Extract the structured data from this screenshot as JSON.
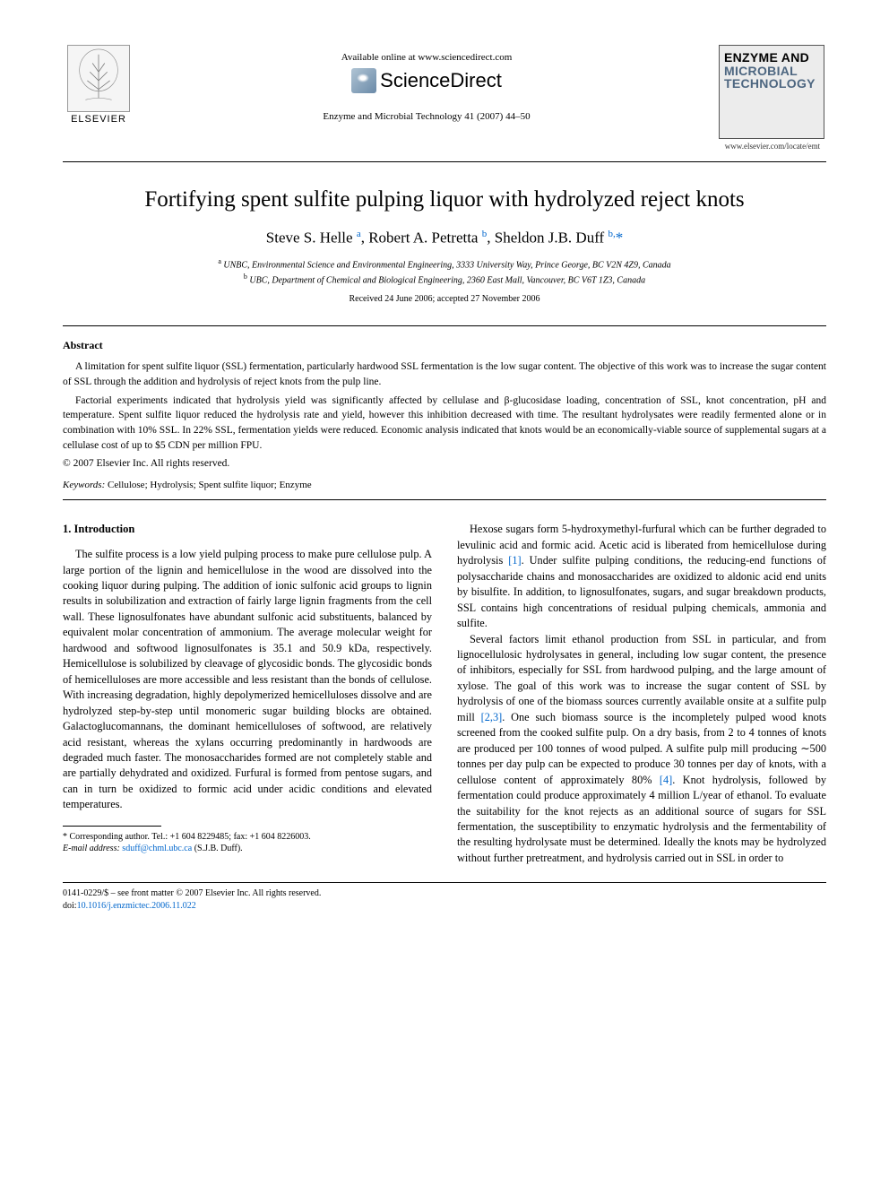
{
  "header": {
    "elsevier": "ELSEVIER",
    "available": "Available online at www.sciencedirect.com",
    "sciencedirect": "ScienceDirect",
    "journal_ref": "Enzyme and Microbial Technology 41 (2007) 44–50",
    "cover_line1": "ENZYME AND",
    "cover_line2": "MICROBIAL",
    "cover_line3": "TECHNOLOGY",
    "cover_url": "www.elsevier.com/locate/emt"
  },
  "title": "Fortifying spent sulfite pulping liquor with hydrolyzed reject knots",
  "authors_html": "Steve S. Helle <sup>a</sup>, Robert A. Petretta <sup>b</sup>, Sheldon J.B. Duff <sup>b,</sup><span class='corr'>*</span>",
  "affiliations": {
    "a": "UNBC, Environmental Science and Environmental Engineering, 3333 University Way, Prince George, BC V2N 4Z9, Canada",
    "b": "UBC, Department of Chemical and Biological Engineering, 2360 East Mall, Vancouver, BC V6T 1Z3, Canada"
  },
  "dates": "Received 24 June 2006; accepted 27 November 2006",
  "abstract": {
    "heading": "Abstract",
    "p1": "A limitation for spent sulfite liquor (SSL) fermentation, particularly hardwood SSL fermentation is the low sugar content. The objective of this work was to increase the sugar content of SSL through the addition and hydrolysis of reject knots from the pulp line.",
    "p2": "Factorial experiments indicated that hydrolysis yield was significantly affected by cellulase and β-glucosidase loading, concentration of SSL, knot concentration, pH and temperature. Spent sulfite liquor reduced the hydrolysis rate and yield, however this inhibition decreased with time. The resultant hydrolysates were readily fermented alone or in combination with 10% SSL. In 22% SSL, fermentation yields were reduced. Economic analysis indicated that knots would be an economically-viable source of supplemental sugars at a cellulase cost of up to $5 CDN per million FPU.",
    "copyright": "© 2007 Elsevier Inc. All rights reserved."
  },
  "keywords": {
    "label": "Keywords:",
    "text": "Cellulose; Hydrolysis; Spent sulfite liquor; Enzyme"
  },
  "section1": {
    "heading": "1. Introduction",
    "para1": "The sulfite process is a low yield pulping process to make pure cellulose pulp. A large portion of the lignin and hemicellulose in the wood are dissolved into the cooking liquor during pulping. The addition of ionic sulfonic acid groups to lignin results in solubilization and extraction of fairly large lignin fragments from the cell wall. These lignosulfonates have abundant sulfonic acid substituents, balanced by equivalent molar concentration of ammonium. The average molecular weight for hardwood and softwood lignosulfonates is 35.1 and 50.9 kDa, respectively. Hemicellulose is solubilized by cleavage of glycosidic bonds. The glycosidic bonds of hemicelluloses are more accessible and less resistant than the bonds of cellulose. With increasing degradation, highly depolymerized hemicelluloses dissolve and are hydrolyzed step-by-step until monomeric sugar building blocks are obtained. Galactoglucomannans, the dominant hemicelluloses of softwood, are relatively acid resistant, whereas the xylans occurring predominantly in hardwoods are degraded much faster. The monosaccharides formed are not completely stable and are partially dehydrated and oxidized. Furfural is formed from pentose sugars, and can in turn be oxidized to formic acid under acidic conditions and elevated temperatures.",
    "para2a": "Hexose sugars form 5-hydroxymethyl-furfural which can be further degraded to levulinic acid and formic acid. Acetic acid is liberated from hemicellulose during hydrolysis ",
    "cite1": "[1]",
    "para2b": ". Under sulfite pulping conditions, the reducing-end functions of polysaccharide chains and monosaccharides are oxidized to aldonic acid end units by bisulfite. In addition, to lignosulfonates, sugars, and sugar breakdown products, SSL contains high concentrations of residual pulping chemicals, ammonia and sulfite.",
    "para3a": "Several factors limit ethanol production from SSL in particular, and from lignocellulosic hydrolysates in general, including low sugar content, the presence of inhibitors, especially for SSL from hardwood pulping, and the large amount of xylose. The goal of this work was to increase the sugar content of SSL by hydrolysis of one of the biomass sources currently available onsite at a sulfite pulp mill ",
    "cite23": "[2,3]",
    "para3b": ". One such biomass source is the incompletely pulped wood knots screened from the cooked sulfite pulp. On a dry basis, from 2 to 4 tonnes of knots are produced per 100 tonnes of wood pulped. A sulfite pulp mill producing ∼500 tonnes per day pulp can be expected to produce 30 tonnes per day of knots, with a cellulose content of approximately 80% ",
    "cite4": "[4]",
    "para3c": ". Knot hydrolysis, followed by fermentation could produce approximately 4 million L/year of ethanol. To evaluate the suitability for the knot rejects as an additional source of sugars for SSL fermentation, the susceptibility to enzymatic hydrolysis and the fermentability of the resulting hydrolysate must be determined. Ideally the knots may be hydrolyzed without further pretreatment, and hydrolysis carried out in SSL in order to"
  },
  "footnote": {
    "corr_label": "* Corresponding author. Tel.: +1 604 8229485; fax: +1 604 8226003.",
    "email_label": "E-mail address:",
    "email": "sduff@chml.ubc.ca",
    "email_suffix": "(S.J.B. Duff)."
  },
  "footer": {
    "line1": "0141-0229/$ – see front matter © 2007 Elsevier Inc. All rights reserved.",
    "doi_label": "doi:",
    "doi": "10.1016/j.enzmictec.2006.11.022"
  },
  "colors": {
    "link": "#0066cc",
    "cover_accent": "#4d6680",
    "text": "#000000",
    "bg": "#ffffff"
  }
}
